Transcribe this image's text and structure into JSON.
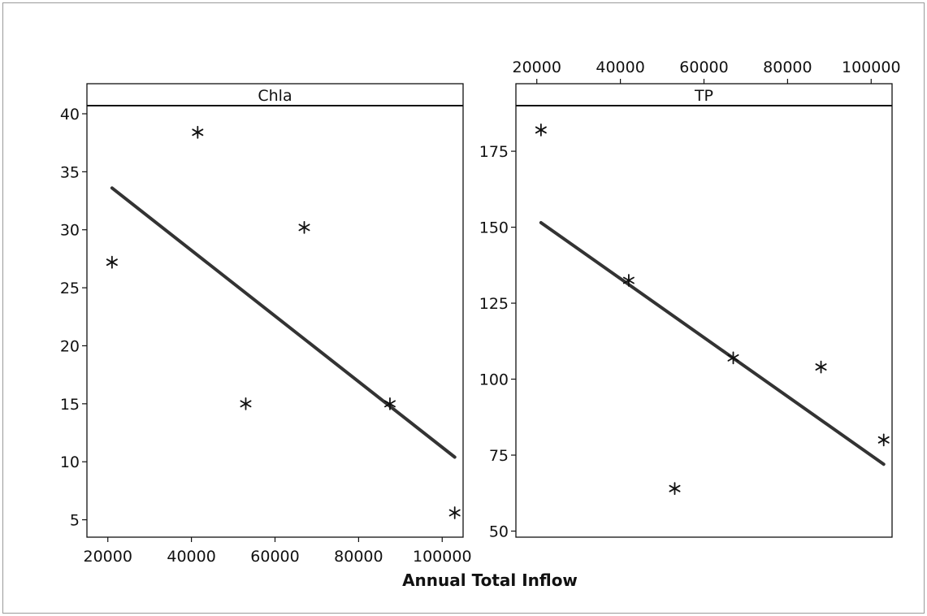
{
  "chart_data": {
    "type": "scatter",
    "xlabel": "Annual Total Inflow",
    "panels": [
      {
        "title": "Chla",
        "xlim": [
          15000,
          105000
        ],
        "ylim": [
          3.5,
          40.7
        ],
        "xticks": [
          "20000",
          "40000",
          "60000",
          "80000",
          "100000"
        ],
        "xtick_values": [
          20000,
          40000,
          60000,
          80000,
          100000
        ],
        "xaxis_position": "bottom",
        "yticks": [
          "40",
          "35",
          "30",
          "25",
          "20",
          "15",
          "10",
          "5"
        ],
        "ytick_values": [
          40,
          35,
          30,
          25,
          20,
          15,
          10,
          5
        ],
        "points": [
          {
            "x": 21000,
            "y": 27.2
          },
          {
            "x": 41500,
            "y": 38.4
          },
          {
            "x": 53000,
            "y": 15.0
          },
          {
            "x": 67000,
            "y": 30.2
          },
          {
            "x": 87500,
            "y": 15.0
          },
          {
            "x": 103000,
            "y": 5.6
          }
        ],
        "fit_line": {
          "x": [
            21000,
            103000
          ],
          "y": [
            33.6,
            10.4
          ]
        }
      },
      {
        "title": "TP",
        "xlim": [
          15000,
          105000
        ],
        "ylim": [
          48,
          190
        ],
        "xticks": [
          "20000",
          "40000",
          "60000",
          "80000",
          "100000"
        ],
        "xtick_values": [
          20000,
          40000,
          60000,
          80000,
          100000
        ],
        "xaxis_position": "top",
        "yticks": [
          "175",
          "150",
          "125",
          "100",
          "75",
          "50"
        ],
        "ytick_values": [
          175,
          150,
          125,
          100,
          75,
          50
        ],
        "points": [
          {
            "x": 21000,
            "y": 182
          },
          {
            "x": 42000,
            "y": 132.5
          },
          {
            "x": 53000,
            "y": 64
          },
          {
            "x": 67000,
            "y": 107
          },
          {
            "x": 88000,
            "y": 104
          },
          {
            "x": 103000,
            "y": 80
          }
        ],
        "fit_line": {
          "x": [
            21000,
            103000
          ],
          "y": [
            151.5,
            72
          ]
        }
      }
    ],
    "marker": "asterisk",
    "colors": {
      "marker": "#111111",
      "line": "#333333",
      "axis": "#111111"
    }
  }
}
